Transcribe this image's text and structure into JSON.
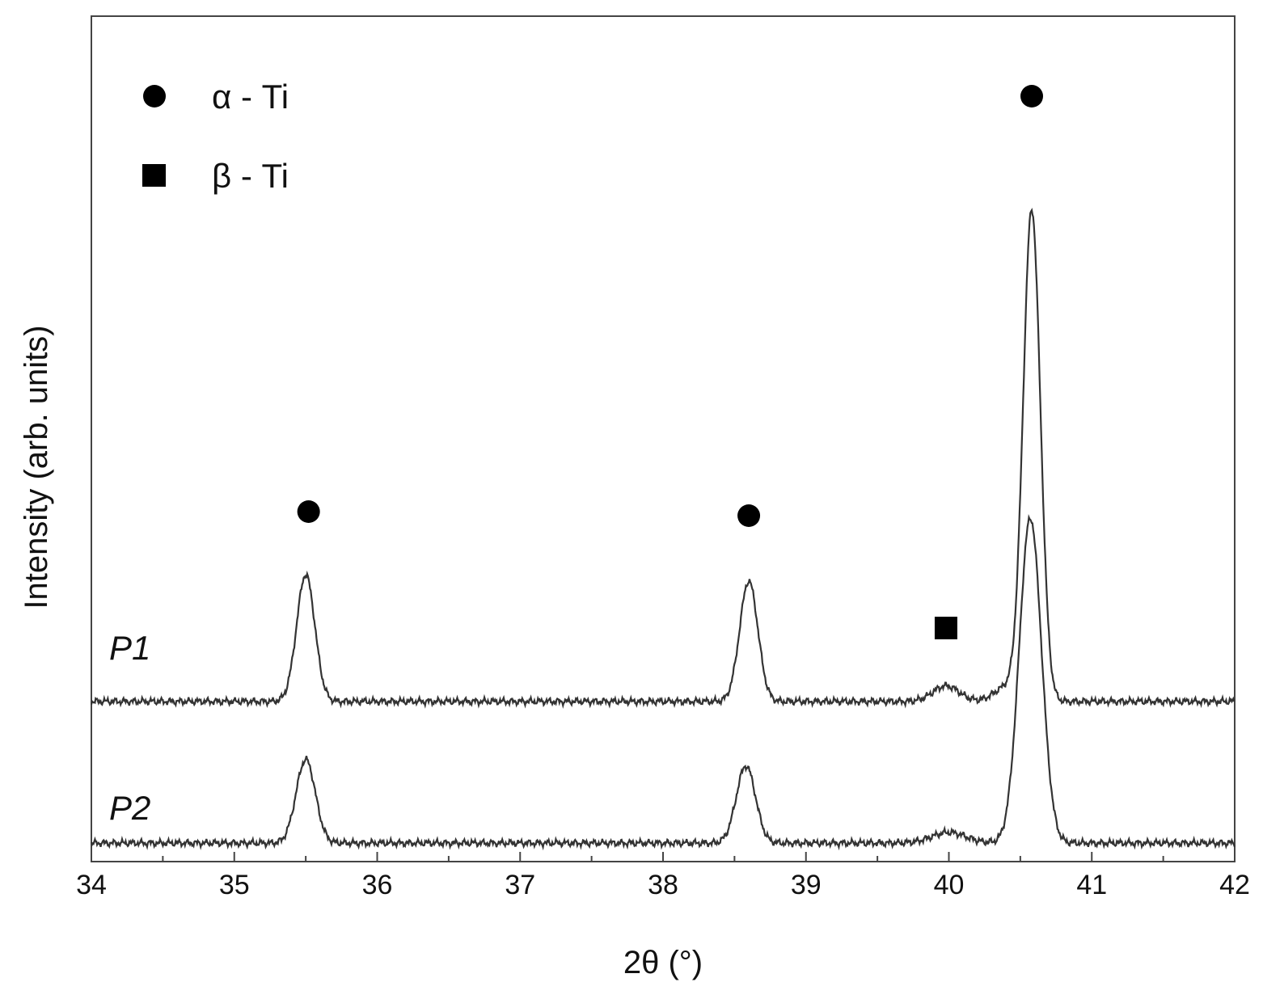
{
  "chart_data": {
    "type": "line",
    "xlabel": "2θ (°)",
    "ylabel": "Intensity (arb. units)",
    "xlim": [
      34,
      42
    ],
    "ylim": [
      0,
      1
    ],
    "x_ticks": [
      "34",
      "35",
      "36",
      "37",
      "38",
      "39",
      "40",
      "41",
      "42"
    ],
    "grid": false,
    "legend": {
      "position": "top-left",
      "entries": [
        {
          "label": "α - Ti",
          "marker": "circle"
        },
        {
          "label": "β - Ti",
          "marker": "square"
        }
      ]
    },
    "series": [
      {
        "name": "P1",
        "baseline": 0.2,
        "peaks": [
          {
            "x": 35.5,
            "height": 0.179,
            "width": 0.09
          },
          {
            "x": 38.6,
            "height": 0.17,
            "width": 0.09
          },
          {
            "x": 39.98,
            "height": 0.022,
            "width": 0.13
          },
          {
            "x": 40.4,
            "height": 0.02,
            "width": 0.12
          },
          {
            "x": 40.58,
            "height": 0.693,
            "width": 0.085
          }
        ]
      },
      {
        "name": "P2",
        "baseline": 0.0,
        "peaks": [
          {
            "x": 35.5,
            "height": 0.118,
            "width": 0.095
          },
          {
            "x": 38.58,
            "height": 0.109,
            "width": 0.095
          },
          {
            "x": 40.0,
            "height": 0.015,
            "width": 0.17
          },
          {
            "x": 40.57,
            "height": 0.459,
            "width": 0.11
          }
        ]
      }
    ],
    "annotations": [
      {
        "marker": "circle",
        "phase": "α - Ti",
        "x": 35.52
      },
      {
        "marker": "circle",
        "phase": "α - Ti",
        "x": 38.6
      },
      {
        "marker": "square",
        "phase": "β - Ti",
        "x": 39.98
      },
      {
        "marker": "circle",
        "phase": "α - Ti",
        "x": 40.58
      }
    ]
  }
}
